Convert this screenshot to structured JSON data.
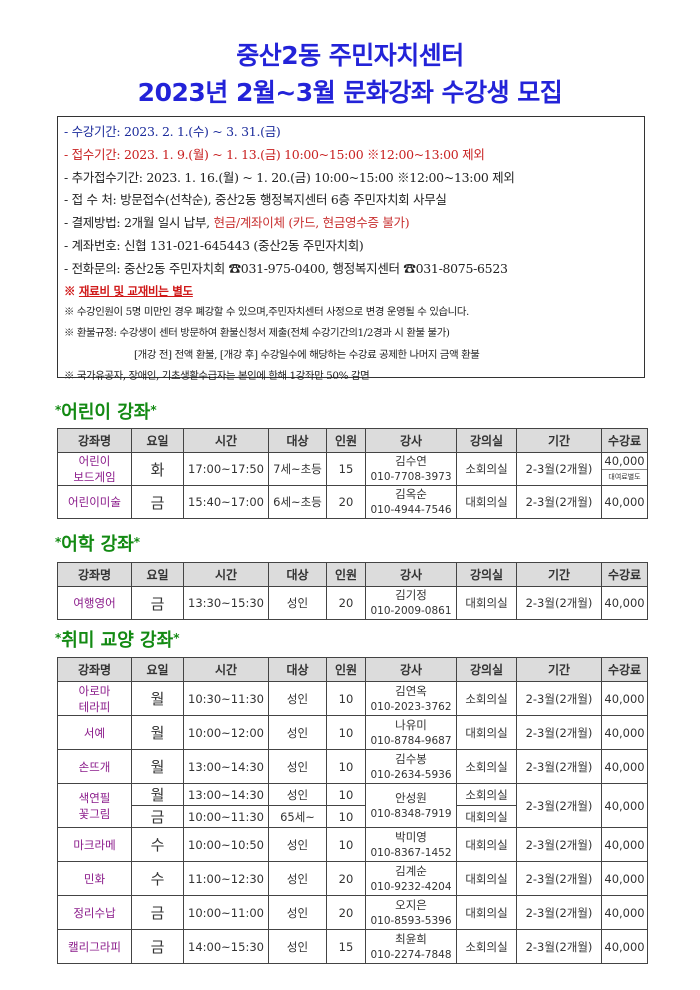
{
  "title": {
    "line1": "중산2동 주민자치센터",
    "line2": "2023년 2월~3월 문화강좌 수강생 모집"
  },
  "notice": {
    "period": "- 수강기간: 2023. 2. 1.(수) ~ 3. 31.(금)",
    "apply": "- 접수기간: 2023. 1. 9.(월) ~ 1. 13.(금) 10:00~15:00  ※12:00~13:00 제외",
    "extra_apply": "- 추가접수기간: 2023. 1. 16.(월) ~ 1. 20.(금) 10:00~15:00  ※12:00~13:00 제외",
    "place": "- 접 수 처: 방문접수(선착순), 중산2동 행정복지센터 6층 주민자치회 사무실",
    "payment_prefix": "- 결제방법: 2개월 일시 납부, ",
    "payment_highlight": "현금/계좌이체 (카드, 현금영수증 불가)",
    "account": "- 계좌번호: 신협 131-021-645443 (중산2동 주민자치회)",
    "phone_prefix": "- 전화문의: 중산2동 주민자치회 ",
    "phone_icon": "☎",
    "phone1": "031-975-0400, 행정복지센터 ",
    "phone2": "031-8075-6523",
    "warn_mark": "※ ",
    "warn": "재료비 및 교재비는 별도",
    "note1": "※ 수강인원이 5명 미만인 경우 폐강할 수 있으며,주민자치센터 사정으로 변경 운영될 수 있습니다.",
    "note2": "※ 환불규정: 수강생이 센터 방문하여 환불신청서 제출(전체 수강기간의1/2경과 시 환불 불가)",
    "note3": "[개강 전] 전액 환불, [개강 후] 수강일수에 해당하는 수강료 공제한 나머지 금액 환불",
    "note4": "※ 국가유공자, 장애인, 기초생활수급자는 본인에 한해 1강좌만 50% 감면"
  },
  "headers": [
    "강좌명",
    "요일",
    "시간",
    "대상",
    "인원",
    "강사",
    "강의실",
    "기간",
    "수강료"
  ],
  "sections": [
    {
      "title": "어린이 강좌",
      "rows": [
        {
          "name": [
            "어린이",
            "보드게임"
          ],
          "day": "화",
          "time": "17:00~17:50",
          "target": "7세~초등",
          "count": "15",
          "instructor": "김수연",
          "phone": "010-7708-3973",
          "room": "소회의실",
          "period": "2-3월(2개월)",
          "fee": "40,000",
          "fee_note": "대여료별도"
        },
        {
          "name": [
            "어린이미술"
          ],
          "day": "금",
          "time": "15:40~17:00",
          "target": "6세~초등",
          "count": "20",
          "instructor": "김옥순",
          "phone": "010-4944-7546",
          "room": "대회의실",
          "period": "2-3월(2개월)",
          "fee": "40,000"
        }
      ]
    },
    {
      "title": "어학 강좌",
      "rows": [
        {
          "name": [
            "여행영어"
          ],
          "day": "금",
          "time": "13:30~15:30",
          "target": "성인",
          "count": "20",
          "instructor": "김기정",
          "phone": "010-2009-0861",
          "room": "대회의실",
          "period": "2-3월(2개월)",
          "fee": "40,000"
        }
      ]
    },
    {
      "title": "취미 교양 강좌",
      "rows": [
        {
          "name": [
            "아로마",
            "테라피"
          ],
          "day": "월",
          "time": "10:30~11:30",
          "target": "성인",
          "count": "10",
          "instructor": "김연옥",
          "phone": "010-2023-3762",
          "room": "소회의실",
          "period": "2-3월(2개월)",
          "fee": "40,000"
        },
        {
          "name": [
            "서예"
          ],
          "day": "월",
          "time": "10:00~12:00",
          "target": "성인",
          "count": "10",
          "instructor": "나유미",
          "phone": "010-8784-9687",
          "room": "대회의실",
          "period": "2-3월(2개월)",
          "fee": "40,000"
        },
        {
          "name": [
            "손뜨개"
          ],
          "day": "월",
          "time": "13:00~14:30",
          "target": "성인",
          "count": "10",
          "instructor": "김수봉",
          "phone": "010-2634-5936",
          "room": "소회의실",
          "period": "2-3월(2개월)",
          "fee": "40,000"
        },
        {
          "name": [
            "색연필",
            "꽃그림"
          ],
          "instructor": "안성원",
          "phone": "010-8348-7919",
          "period": "2-3월(2개월)",
          "fee": "40,000",
          "sessions": [
            {
              "day": "월",
              "time": "13:00~14:30",
              "target": "성인",
              "count": "10",
              "room": "소회의실"
            },
            {
              "day": "금",
              "time": "10:00~11:30",
              "target": "65세~",
              "count": "10",
              "room": "대회의실"
            }
          ]
        },
        {
          "name": [
            "마크라메"
          ],
          "day": "수",
          "time": "10:00~10:50",
          "target": "성인",
          "count": "10",
          "instructor": "박미영",
          "phone": "010-8367-1452",
          "room": "대회의실",
          "period": "2-3월(2개월)",
          "fee": "40,000"
        },
        {
          "name": [
            "민화"
          ],
          "day": "수",
          "time": "11:00~12:30",
          "target": "성인",
          "count": "20",
          "instructor": "김계순",
          "phone": "010-9232-4204",
          "room": "대회의실",
          "period": "2-3월(2개월)",
          "fee": "40,000"
        },
        {
          "name": [
            "정리수납"
          ],
          "day": "금",
          "time": "10:00~11:00",
          "target": "성인",
          "count": "20",
          "instructor": "오지은",
          "phone": "010-8593-5396",
          "room": "대회의실",
          "period": "2-3월(2개월)",
          "fee": "40,000"
        },
        {
          "name": [
            "캘리그라피"
          ],
          "day": "금",
          "time": "14:00~15:30",
          "target": "성인",
          "count": "15",
          "instructor": "최윤희",
          "phone": "010-2274-7848",
          "room": "소회의실",
          "period": "2-3월(2개월)",
          "fee": "40,000"
        }
      ]
    }
  ]
}
